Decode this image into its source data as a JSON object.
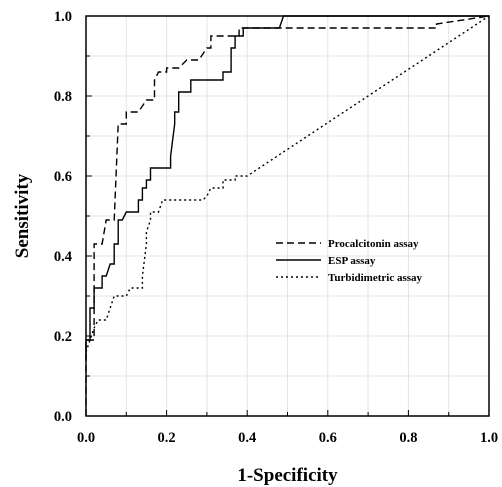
{
  "chart_data": {
    "type": "line",
    "title": "",
    "xlabel": "1-Specificity",
    "ylabel": "Sensitivity",
    "xlim": [
      0,
      1
    ],
    "ylim": [
      0,
      1
    ],
    "x_ticks": [
      "0.0",
      "0.2",
      "0.4",
      "0.6",
      "0.8",
      "1.0"
    ],
    "y_ticks": [
      "0.0",
      "0.2",
      "0.4",
      "0.6",
      "0.8",
      "1.0"
    ],
    "grid": true,
    "legend_position": "center-right",
    "series": [
      {
        "name": "Procalcitonin assay",
        "style": "dashed",
        "points": [
          [
            0.0,
            0.0
          ],
          [
            0.0,
            0.19
          ],
          [
            0.02,
            0.19
          ],
          [
            0.02,
            0.43
          ],
          [
            0.04,
            0.43
          ],
          [
            0.05,
            0.49
          ],
          [
            0.07,
            0.49
          ],
          [
            0.08,
            0.73
          ],
          [
            0.1,
            0.73
          ],
          [
            0.1,
            0.76
          ],
          [
            0.13,
            0.76
          ],
          [
            0.15,
            0.79
          ],
          [
            0.17,
            0.79
          ],
          [
            0.17,
            0.84
          ],
          [
            0.18,
            0.86
          ],
          [
            0.2,
            0.86
          ],
          [
            0.2,
            0.87
          ],
          [
            0.23,
            0.87
          ],
          [
            0.25,
            0.89
          ],
          [
            0.28,
            0.89
          ],
          [
            0.3,
            0.92
          ],
          [
            0.31,
            0.92
          ],
          [
            0.31,
            0.95
          ],
          [
            0.38,
            0.95
          ],
          [
            0.38,
            0.97
          ],
          [
            0.87,
            0.97
          ],
          [
            0.87,
            0.98
          ],
          [
            1.0,
            1.0
          ]
        ]
      },
      {
        "name": "ESP assay",
        "style": "solid",
        "points": [
          [
            0.0,
            0.14
          ],
          [
            0.0,
            0.19
          ],
          [
            0.01,
            0.19
          ],
          [
            0.01,
            0.27
          ],
          [
            0.02,
            0.27
          ],
          [
            0.02,
            0.32
          ],
          [
            0.04,
            0.32
          ],
          [
            0.04,
            0.35
          ],
          [
            0.05,
            0.35
          ],
          [
            0.06,
            0.38
          ],
          [
            0.07,
            0.38
          ],
          [
            0.07,
            0.43
          ],
          [
            0.08,
            0.43
          ],
          [
            0.08,
            0.49
          ],
          [
            0.09,
            0.49
          ],
          [
            0.1,
            0.51
          ],
          [
            0.13,
            0.51
          ],
          [
            0.13,
            0.54
          ],
          [
            0.14,
            0.54
          ],
          [
            0.14,
            0.57
          ],
          [
            0.15,
            0.57
          ],
          [
            0.15,
            0.59
          ],
          [
            0.16,
            0.59
          ],
          [
            0.16,
            0.62
          ],
          [
            0.21,
            0.62
          ],
          [
            0.21,
            0.65
          ],
          [
            0.22,
            0.73
          ],
          [
            0.22,
            0.76
          ],
          [
            0.23,
            0.76
          ],
          [
            0.23,
            0.81
          ],
          [
            0.26,
            0.81
          ],
          [
            0.26,
            0.84
          ],
          [
            0.34,
            0.84
          ],
          [
            0.34,
            0.86
          ],
          [
            0.36,
            0.86
          ],
          [
            0.36,
            0.92
          ],
          [
            0.37,
            0.92
          ],
          [
            0.37,
            0.95
          ],
          [
            0.39,
            0.95
          ],
          [
            0.39,
            0.97
          ],
          [
            0.48,
            0.97
          ],
          [
            0.49,
            1.0
          ],
          [
            1.0,
            1.0
          ]
        ]
      },
      {
        "name": "Turbidimetric assay",
        "style": "dotted",
        "points": [
          [
            0.0,
            0.16
          ],
          [
            0.01,
            0.19
          ],
          [
            0.02,
            0.22
          ],
          [
            0.03,
            0.24
          ],
          [
            0.05,
            0.24
          ],
          [
            0.06,
            0.27
          ],
          [
            0.07,
            0.3
          ],
          [
            0.1,
            0.3
          ],
          [
            0.11,
            0.32
          ],
          [
            0.14,
            0.32
          ],
          [
            0.14,
            0.35
          ],
          [
            0.15,
            0.43
          ],
          [
            0.15,
            0.46
          ],
          [
            0.16,
            0.49
          ],
          [
            0.16,
            0.51
          ],
          [
            0.18,
            0.51
          ],
          [
            0.19,
            0.54
          ],
          [
            0.29,
            0.54
          ],
          [
            0.3,
            0.55
          ],
          [
            0.31,
            0.57
          ],
          [
            0.34,
            0.57
          ],
          [
            0.34,
            0.59
          ],
          [
            0.37,
            0.59
          ],
          [
            0.37,
            0.6
          ],
          [
            0.4,
            0.6
          ],
          [
            1.0,
            1.0
          ]
        ]
      }
    ]
  }
}
